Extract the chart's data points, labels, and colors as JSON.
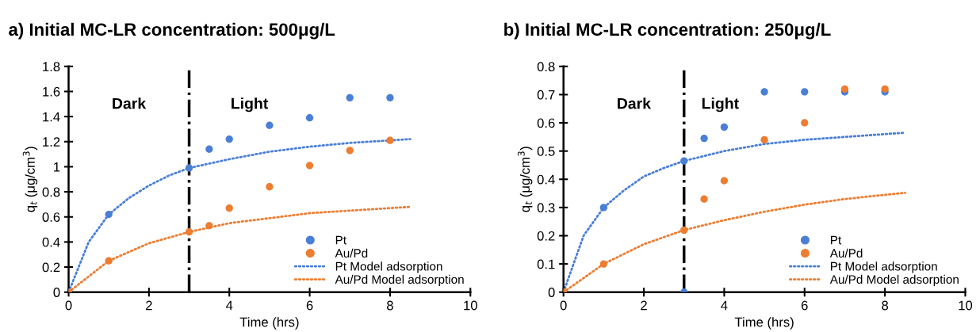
{
  "chart_data": [
    {
      "type": "scatter",
      "title": "a) Initial MC-LR concentration: 500μg/L",
      "xlabel": "Time (hrs)",
      "ylabel": "q$_{t}$ (μg/cm$^{3}$)",
      "xlim": [
        0,
        10
      ],
      "xticks": [
        0,
        2,
        4,
        6,
        8,
        10
      ],
      "ylim": [
        0,
        1.8
      ],
      "yticks": [
        0,
        0.2,
        0.4,
        0.6,
        0.8,
        1,
        1.2,
        1.4,
        1.6,
        1.8
      ],
      "grid": false,
      "legend": "bottom right",
      "ref_lines": [
        {
          "axis": "x",
          "value": 3,
          "color": "#000000",
          "line_style": "dashdot"
        }
      ],
      "annotations": [
        "Dark",
        "Light"
      ],
      "series": [
        {
          "name": "Pt",
          "marker": "circle",
          "color": "#4a7fd6",
          "x": [
            0,
            1,
            3,
            3.5,
            4,
            5,
            6,
            7,
            8
          ],
          "values": [
            0,
            0.62,
            0.99,
            1.14,
            1.22,
            1.33,
            1.39,
            1.55,
            1.55
          ]
        },
        {
          "name": "Au/Pd",
          "marker": "circle",
          "color": "#ed7d31",
          "x": [
            0,
            1,
            3,
            3.5,
            4,
            5,
            6,
            7,
            8
          ],
          "values": [
            0,
            0.25,
            0.48,
            0.53,
            0.67,
            0.84,
            1.01,
            1.13,
            1.21
          ]
        },
        {
          "name": "Pt Model adsorption",
          "type": "line",
          "line_style": "dotted",
          "color": "#4a7fd6",
          "x": [
            0,
            0.5,
            1,
            1.5,
            2,
            2.5,
            3,
            4,
            5,
            6,
            7,
            8,
            8.5
          ],
          "values": [
            0,
            0.4,
            0.62,
            0.75,
            0.85,
            0.93,
            0.99,
            1.06,
            1.12,
            1.16,
            1.19,
            1.21,
            1.22
          ]
        },
        {
          "name": "Au/Pd Model adsorption",
          "type": "line",
          "line_style": "dotted",
          "color": "#ed7d31",
          "x": [
            0,
            1,
            2,
            3,
            4,
            5,
            6,
            7,
            8,
            8.5
          ],
          "values": [
            0,
            0.25,
            0.39,
            0.48,
            0.55,
            0.59,
            0.63,
            0.65,
            0.67,
            0.68
          ]
        }
      ]
    },
    {
      "type": "scatter",
      "title": "b) Initial MC-LR concentration: 250μg/L",
      "xlabel": "Time (hrs)",
      "ylabel": "q$_{t}$ (μg/cm$^{3}$)",
      "xlim": [
        0,
        10
      ],
      "xticks": [
        0,
        2,
        4,
        6,
        8,
        10
      ],
      "ylim": [
        0,
        0.8
      ],
      "yticks": [
        0,
        0.1,
        0.2,
        0.3,
        0.4,
        0.5,
        0.6,
        0.7,
        0.8
      ],
      "grid": false,
      "legend": "bottom right",
      "ref_lines": [
        {
          "axis": "x",
          "value": 3,
          "color": "#000000",
          "line_style": "dashdot"
        }
      ],
      "annotations": [
        "Dark",
        "Light"
      ],
      "series": [
        {
          "name": "Pt",
          "marker": "circle",
          "color": "#4a7fd6",
          "x": [
            0,
            1,
            3,
            3,
            3.5,
            4,
            5,
            6,
            7,
            8
          ],
          "values": [
            0,
            0.3,
            0.465,
            0,
            0.545,
            0.585,
            0.71,
            0.71,
            0.71,
            0.71
          ]
        },
        {
          "name": "Au/Pd",
          "marker": "circle",
          "color": "#ed7d31",
          "x": [
            0,
            1,
            3,
            3.5,
            4,
            5,
            6,
            7,
            8
          ],
          "values": [
            0,
            0.1,
            0.22,
            0.33,
            0.395,
            0.54,
            0.6,
            0.72,
            0.72
          ]
        },
        {
          "name": "Pt Model adsorption",
          "type": "line",
          "line_style": "dotted",
          "color": "#4a7fd6",
          "x": [
            0,
            0.5,
            1,
            1.5,
            2,
            2.5,
            3,
            4,
            5,
            6,
            7,
            8,
            8.5
          ],
          "values": [
            0,
            0.2,
            0.3,
            0.36,
            0.41,
            0.44,
            0.465,
            0.5,
            0.525,
            0.54,
            0.55,
            0.56,
            0.565
          ]
        },
        {
          "name": "Au/Pd Model adsorption",
          "type": "line",
          "line_style": "dotted",
          "color": "#ed7d31",
          "x": [
            0,
            1,
            2,
            3,
            4,
            5,
            6,
            7,
            8,
            8.5
          ],
          "values": [
            0,
            0.1,
            0.17,
            0.22,
            0.255,
            0.285,
            0.31,
            0.33,
            0.345,
            0.352
          ]
        }
      ]
    }
  ]
}
